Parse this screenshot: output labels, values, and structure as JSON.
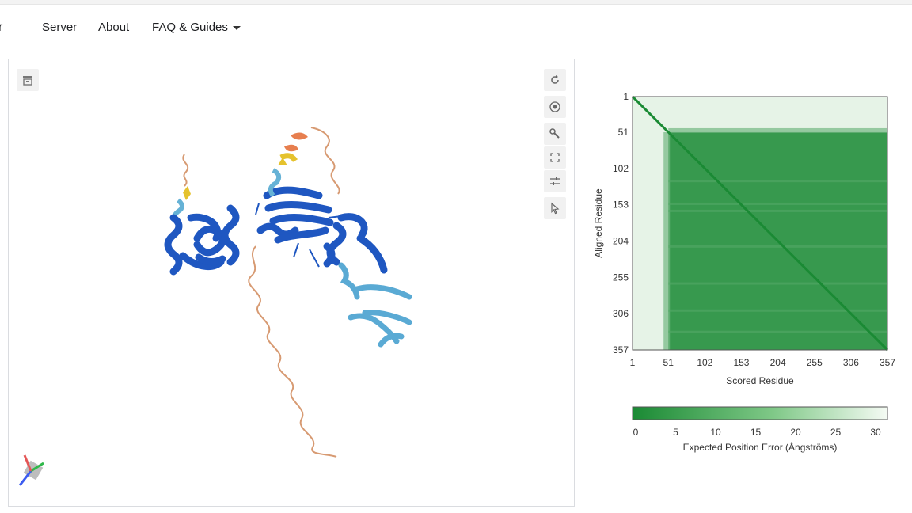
{
  "nav": {
    "brand_fragment": "r",
    "items": [
      "Server",
      "About",
      "FAQ & Guides"
    ]
  },
  "viewer": {
    "tools": [
      "sync-icon",
      "camera-icon",
      "wrench-icon",
      "expand-icon",
      "sliders-icon",
      "cursor-icon"
    ],
    "left_tool": "snapshot-icon"
  },
  "pae_plot": {
    "y_label": "Aligned Residue",
    "x_label": "Scored Residue",
    "y_ticks": [
      "1",
      "51",
      "102",
      "153",
      "204",
      "255",
      "306",
      "357"
    ],
    "x_ticks": [
      "1",
      "51",
      "102",
      "153",
      "204",
      "255",
      "306",
      "357"
    ],
    "colorbar_ticks": [
      "0",
      "5",
      "10",
      "15",
      "20",
      "25",
      "30"
    ],
    "colorbar_label": "Expected Position Error (Ångströms)",
    "colors": {
      "low": "#1a8a34",
      "high": "#f5fbf4"
    }
  },
  "chart_data": {
    "type": "heatmap",
    "xlabel": "Scored Residue",
    "ylabel": "Aligned Residue",
    "x_range": [
      1,
      357
    ],
    "y_range": [
      1,
      357
    ],
    "colorbar_range": [
      0,
      30
    ],
    "colorbar_label": "Expected Position Error (Ångströms)",
    "regions": [
      {
        "rows": [
          1,
          51
        ],
        "cols": [
          1,
          357
        ],
        "error": 28
      },
      {
        "rows": [
          51,
          357
        ],
        "cols": [
          1,
          51
        ],
        "error": 28
      },
      {
        "rows": [
          51,
          357
        ],
        "cols": [
          51,
          357
        ],
        "error": 4
      },
      {
        "diagonal": true,
        "error": 1
      }
    ]
  }
}
